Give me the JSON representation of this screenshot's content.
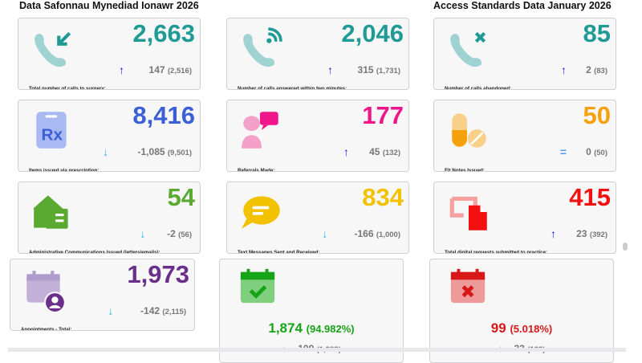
{
  "titles": {
    "welsh": "Data Safonnau Mynediad Ionawr 2026",
    "english": "Access Standards Data January 2026"
  },
  "colors": {
    "up": "#1a1ae6",
    "down": "#29b6e8",
    "equal": "#4a9be8"
  },
  "cards": [
    {
      "value": "2,663",
      "change": "147",
      "previous": "(2,516)",
      "direction": "up",
      "label": "Total number of calls to surgery:",
      "color": "#1f9a94",
      "icon": "phone-incoming-icon"
    },
    {
      "value": "2,046",
      "change": "315",
      "previous": "(1,731)",
      "direction": "up",
      "label": "Number of calls answered within two minutes:",
      "color": "#1f9a94",
      "icon": "phone-signal-icon"
    },
    {
      "value": "85",
      "change": "2",
      "previous": "(83)",
      "direction": "up",
      "label": "Number of calls abandoned:",
      "color": "#1f9a94",
      "icon": "phone-missed-icon"
    },
    {
      "value": "8,416",
      "change": "-1,085",
      "previous": "(9,501)",
      "direction": "down",
      "label": "Items issued via prescription:",
      "color": "#3a5fd6",
      "icon": "prescription-icon"
    },
    {
      "value": "177",
      "change": "45",
      "previous": "(132)",
      "direction": "up",
      "label": "Referrals Made:",
      "color": "#f0158a",
      "icon": "referral-icon"
    },
    {
      "value": "50",
      "change": "0",
      "previous": "(50)",
      "direction": "equal",
      "label": "Fit Notes Issued:",
      "color": "#f5a00c",
      "icon": "pills-icon"
    },
    {
      "value": "54",
      "change": "-2",
      "previous": "(56)",
      "direction": "down",
      "label": "Administrative Communications Issued (letters/emails):",
      "color": "#5aaa32",
      "icon": "mail-icon"
    },
    {
      "value": "834",
      "change": "-166",
      "previous": "(1,000)",
      "direction": "down",
      "label": "Text Messages Sent and Received:",
      "color": "#f2c200",
      "icon": "message-icon"
    },
    {
      "value": "415",
      "change": "23",
      "previous": "(392)",
      "direction": "up",
      "label": "Total digital requests submitted to practice:",
      "color": "#f21010",
      "icon": "digital-request-icon"
    },
    {
      "value": "1,973",
      "change": "-142",
      "previous": "(2,115)",
      "direction": "down",
      "label": "Appointments - Total:",
      "color": "#6a2f8a",
      "icon": "calendar-user-icon"
    }
  ],
  "wide_cards": [
    {
      "value": "1,874",
      "percent": "(94.982%)",
      "change": "-109",
      "previous": "(1,983)",
      "direction": "down",
      "color": "#17a317",
      "icon": "calendar-check-icon"
    },
    {
      "value": "99",
      "percent": "(5.018%)",
      "change": "-33",
      "previous": "(132)",
      "direction": "down",
      "color": "#d61818",
      "icon": "calendar-cross-icon"
    }
  ]
}
